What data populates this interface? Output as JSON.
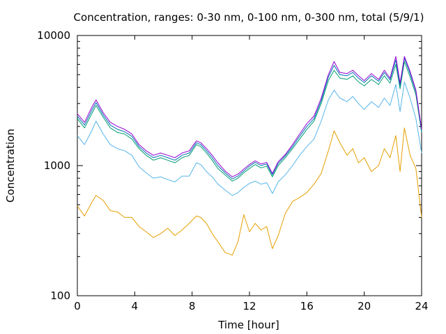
{
  "chart_data": {
    "type": "line",
    "title": "Concentration, ranges: 0-30 nm, 0-100 nm, 0-300 nm, total (5/9/1)",
    "xlabel": "Time [hour]",
    "ylabel": "Concentration",
    "xlim": [
      0,
      24
    ],
    "ylim": [
      100,
      10000
    ],
    "yscale": "log",
    "grid": false,
    "legend": "none",
    "xticks": [
      0,
      4,
      8,
      12,
      16,
      20,
      24
    ],
    "xtick_labels": [
      "0",
      "4",
      "8",
      "12",
      "16",
      "20",
      "24"
    ],
    "yticks": [
      100,
      1000,
      10000
    ],
    "ytick_labels": [
      "100",
      "1000",
      "10000"
    ],
    "series": [
      {
        "color": "#e69f00",
        "x": [
          0,
          0.5,
          1.0,
          1.3,
          1.8,
          2.3,
          2.8,
          3.3,
          3.8,
          4.3,
          4.8,
          5.3,
          5.8,
          6.3,
          6.8,
          7.3,
          7.8,
          8.3,
          8.6,
          9.0,
          9.4,
          9.8,
          10.3,
          10.8,
          11.2,
          11.6,
          12.0,
          12.4,
          12.8,
          13.2,
          13.6,
          14.0,
          14.5,
          15.0,
          15.5,
          16.0,
          16.5,
          17.0,
          17.5,
          17.9,
          18.3,
          18.8,
          19.2,
          19.6,
          20.0,
          20.5,
          21.0,
          21.4,
          21.8,
          22.2,
          22.5,
          22.8,
          23.2,
          23.6,
          24.0
        ],
        "values": [
          490,
          410,
          520,
          590,
          540,
          450,
          440,
          400,
          400,
          340,
          310,
          280,
          300,
          330,
          290,
          320,
          360,
          410,
          400,
          360,
          300,
          260,
          215,
          205,
          260,
          420,
          310,
          360,
          320,
          340,
          230,
          290,
          430,
          530,
          570,
          620,
          720,
          870,
          1300,
          1850,
          1500,
          1200,
          1350,
          1050,
          1150,
          900,
          1000,
          1350,
          1150,
          1700,
          900,
          1950,
          1200,
          950,
          400
        ]
      },
      {
        "color": "#56b4e9",
        "x": [
          0,
          0.5,
          1.0,
          1.3,
          1.8,
          2.3,
          2.8,
          3.3,
          3.8,
          4.3,
          4.8,
          5.3,
          5.8,
          6.3,
          6.8,
          7.3,
          7.8,
          8.3,
          8.6,
          9.0,
          9.4,
          9.8,
          10.3,
          10.8,
          11.2,
          11.6,
          12.0,
          12.4,
          12.8,
          13.2,
          13.6,
          14.0,
          14.5,
          15.0,
          15.5,
          16.0,
          16.5,
          17.0,
          17.5,
          17.9,
          18.3,
          18.8,
          19.2,
          19.6,
          20.0,
          20.5,
          21.0,
          21.4,
          21.8,
          22.2,
          22.5,
          22.8,
          23.2,
          23.6,
          24.0
        ],
        "values": [
          1700,
          1450,
          1850,
          2200,
          1750,
          1450,
          1350,
          1300,
          1200,
          980,
          880,
          800,
          820,
          780,
          750,
          830,
          830,
          1050,
          1020,
          900,
          820,
          720,
          650,
          590,
          620,
          680,
          730,
          760,
          720,
          740,
          610,
          750,
          850,
          1000,
          1200,
          1400,
          1600,
          2200,
          3200,
          3800,
          3300,
          3100,
          3400,
          3000,
          2700,
          3100,
          2800,
          3300,
          2900,
          4200,
          2600,
          4400,
          3300,
          2300,
          1250
        ]
      },
      {
        "color": "#009e73",
        "x": [
          0,
          0.5,
          1.0,
          1.3,
          1.8,
          2.3,
          2.8,
          3.3,
          3.8,
          4.3,
          4.8,
          5.3,
          5.8,
          6.3,
          6.8,
          7.3,
          7.8,
          8.3,
          8.6,
          9.0,
          9.4,
          9.8,
          10.3,
          10.8,
          11.2,
          11.6,
          12.0,
          12.4,
          12.8,
          13.2,
          13.6,
          14.0,
          14.5,
          15.0,
          15.5,
          16.0,
          16.5,
          17.0,
          17.5,
          17.9,
          18.3,
          18.8,
          19.2,
          19.6,
          20.0,
          20.5,
          21.0,
          21.4,
          21.8,
          22.2,
          22.5,
          22.8,
          23.2,
          23.6,
          24.0
        ],
        "values": [
          2300,
          1950,
          2500,
          2900,
          2350,
          1950,
          1800,
          1750,
          1600,
          1350,
          1200,
          1100,
          1150,
          1100,
          1050,
          1150,
          1200,
          1450,
          1400,
          1250,
          1100,
          950,
          850,
          760,
          800,
          880,
          950,
          1020,
          960,
          990,
          820,
          1000,
          1150,
          1350,
          1600,
          1900,
          2200,
          3000,
          4500,
          5400,
          4700,
          4600,
          4900,
          4400,
          4100,
          4600,
          4200,
          4900,
          4300,
          6000,
          3900,
          6300,
          4800,
          3500,
          1800
        ]
      },
      {
        "color": "#0072b2",
        "x": [
          0,
          0.5,
          1.0,
          1.3,
          1.8,
          2.3,
          2.8,
          3.3,
          3.8,
          4.3,
          4.8,
          5.3,
          5.8,
          6.3,
          6.8,
          7.3,
          7.8,
          8.3,
          8.6,
          9.0,
          9.4,
          9.8,
          10.3,
          10.8,
          11.2,
          11.6,
          12.0,
          12.4,
          12.8,
          13.2,
          13.6,
          14.0,
          14.5,
          15.0,
          15.5,
          16.0,
          16.5,
          17.0,
          17.5,
          17.9,
          18.3,
          18.8,
          19.2,
          19.6,
          20.0,
          20.5,
          21.0,
          21.4,
          21.8,
          22.2,
          22.5,
          22.8,
          23.2,
          23.6,
          24.0
        ],
        "values": [
          2400,
          2050,
          2650,
          3050,
          2450,
          2050,
          1900,
          1820,
          1680,
          1400,
          1250,
          1150,
          1200,
          1150,
          1100,
          1200,
          1250,
          1500,
          1450,
          1300,
          1150,
          1000,
          880,
          790,
          830,
          910,
          990,
          1060,
          1000,
          1030,
          850,
          1040,
          1190,
          1400,
          1680,
          2000,
          2300,
          3150,
          4800,
          5900,
          5000,
          4900,
          5200,
          4700,
          4350,
          4900,
          4450,
          5200,
          4550,
          6500,
          4100,
          6700,
          5100,
          3700,
          1850
        ]
      },
      {
        "color": "#9400d3",
        "x": [
          0,
          0.5,
          1.0,
          1.3,
          1.8,
          2.3,
          2.8,
          3.3,
          3.8,
          4.3,
          4.8,
          5.3,
          5.8,
          6.3,
          6.8,
          7.3,
          7.8,
          8.3,
          8.6,
          9.0,
          9.4,
          9.8,
          10.3,
          10.8,
          11.2,
          11.6,
          12.0,
          12.4,
          12.8,
          13.2,
          13.6,
          14.0,
          14.5,
          15.0,
          15.5,
          16.0,
          16.5,
          17.0,
          17.5,
          17.9,
          18.3,
          18.8,
          19.2,
          19.6,
          20.0,
          20.5,
          21.0,
          21.4,
          21.8,
          22.2,
          22.5,
          22.8,
          23.2,
          23.6,
          24.0
        ],
        "values": [
          2500,
          2150,
          2800,
          3200,
          2550,
          2150,
          2000,
          1900,
          1750,
          1450,
          1300,
          1200,
          1250,
          1200,
          1150,
          1250,
          1300,
          1550,
          1500,
          1350,
          1200,
          1050,
          910,
          820,
          860,
          940,
          1020,
          1090,
          1030,
          1060,
          870,
          1070,
          1220,
          1450,
          1750,
          2100,
          2400,
          3300,
          5000,
          6300,
          5200,
          5100,
          5400,
          4900,
          4500,
          5100,
          4600,
          5400,
          4700,
          6900,
          4300,
          6900,
          5300,
          3800,
          1900
        ]
      }
    ]
  }
}
